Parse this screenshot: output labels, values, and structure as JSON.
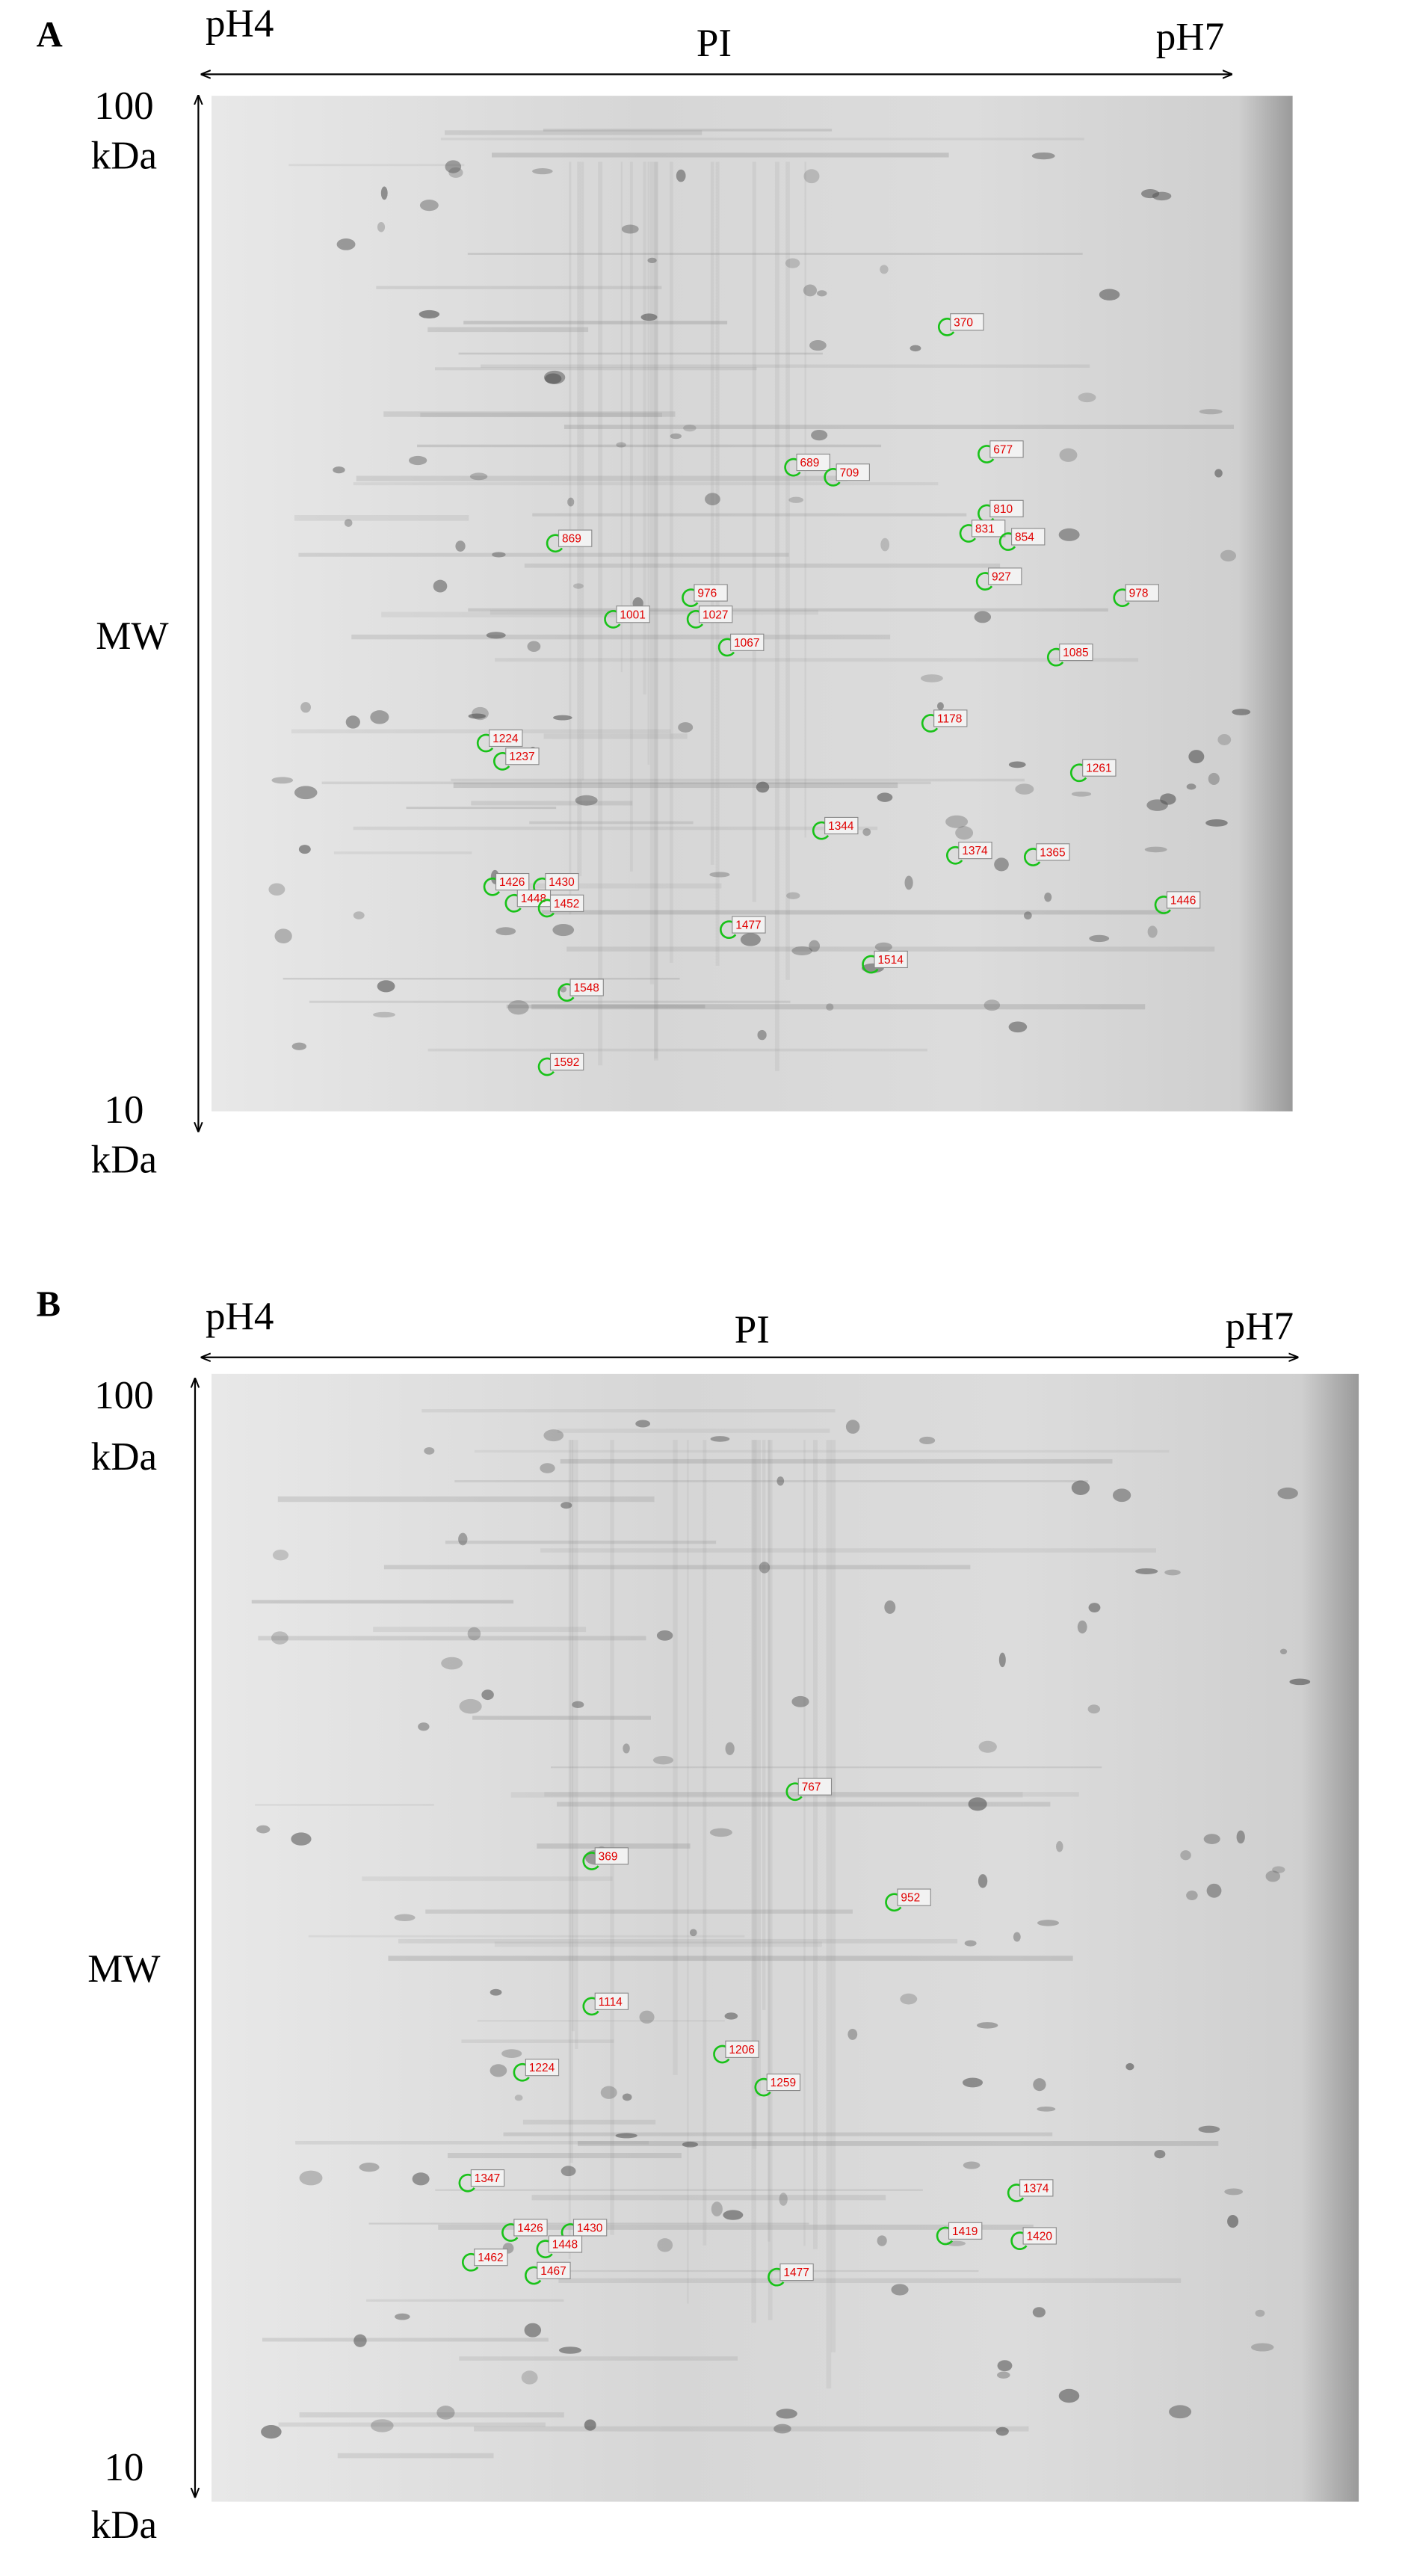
{
  "panels": [
    {
      "label": "A",
      "x_axis": {
        "left": "pH4",
        "title": "PI",
        "right": "pH7"
      },
      "y_axis": {
        "top": "100",
        "top_unit": "kDa",
        "title": "MW",
        "bottom": "10",
        "bottom_unit": "kDa"
      },
      "spots": [
        "370",
        "677",
        "689",
        "709",
        "810",
        "831",
        "854",
        "869",
        "927",
        "976",
        "978",
        "1001",
        "1027",
        "1067",
        "1085",
        "1178",
        "1224",
        "1237",
        "1261",
        "1344",
        "1374",
        "1365",
        "1426",
        "1430",
        "1448",
        "1452",
        "1446",
        "1477",
        "1514",
        "1548",
        "1592"
      ]
    },
    {
      "label": "B",
      "x_axis": {
        "left": "pH4",
        "title": "PI",
        "right": "pH7"
      },
      "y_axis": {
        "top": "100",
        "top_unit": "kDa",
        "title": "MW",
        "bottom": "10",
        "bottom_unit": "kDa"
      },
      "spots": [
        "767",
        "369",
        "952",
        "1114",
        "1206",
        "1224",
        "1259",
        "1347",
        "1374",
        "1419",
        "1420",
        "1426",
        "1430",
        "1448",
        "1462",
        "1467",
        "1477"
      ]
    }
  ]
}
